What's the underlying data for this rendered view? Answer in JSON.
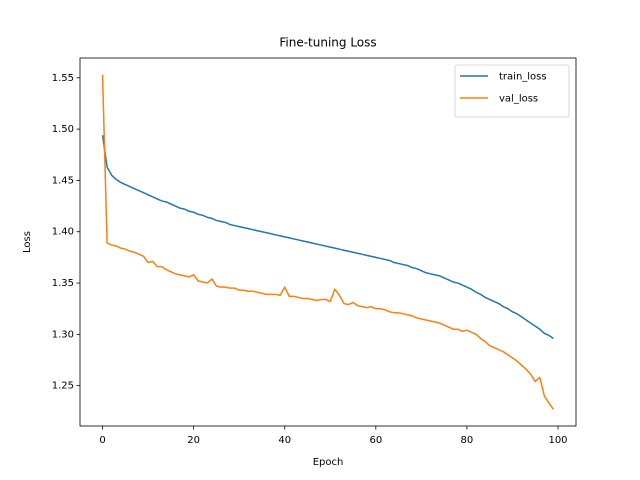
{
  "chart_data": {
    "type": "line",
    "title": "Fine-tuning Loss",
    "x_label": "Epoch",
    "y_label": "Loss",
    "x": [
      0,
      1,
      2,
      3,
      4,
      5,
      6,
      7,
      8,
      9,
      10,
      11,
      12,
      13,
      14,
      15,
      16,
      17,
      18,
      19,
      20,
      21,
      22,
      23,
      24,
      25,
      26,
      27,
      28,
      29,
      30,
      31,
      32,
      33,
      34,
      35,
      36,
      37,
      38,
      39,
      40,
      41,
      42,
      43,
      44,
      45,
      46,
      47,
      48,
      49,
      50,
      51,
      52,
      53,
      54,
      55,
      56,
      57,
      58,
      59,
      60,
      61,
      62,
      63,
      64,
      65,
      66,
      67,
      68,
      69,
      70,
      71,
      72,
      73,
      74,
      75,
      76,
      77,
      78,
      79,
      80,
      81,
      82,
      83,
      84,
      85,
      86,
      87,
      88,
      89,
      90,
      91,
      92,
      93,
      94,
      95,
      96,
      97,
      98,
      99
    ],
    "series": [
      {
        "name": "train_loss",
        "color": "#1f77b4",
        "values": [
          1.494,
          1.463,
          1.455,
          1.451,
          1.448,
          1.446,
          1.444,
          1.442,
          1.44,
          1.438,
          1.436,
          1.434,
          1.432,
          1.43,
          1.429,
          1.427,
          1.425,
          1.423,
          1.422,
          1.42,
          1.419,
          1.417,
          1.416,
          1.414,
          1.413,
          1.411,
          1.41,
          1.409,
          1.407,
          1.406,
          1.405,
          1.404,
          1.403,
          1.402,
          1.401,
          1.4,
          1.399,
          1.398,
          1.397,
          1.396,
          1.395,
          1.394,
          1.393,
          1.392,
          1.391,
          1.39,
          1.389,
          1.388,
          1.387,
          1.386,
          1.385,
          1.384,
          1.383,
          1.382,
          1.381,
          1.38,
          1.379,
          1.378,
          1.377,
          1.376,
          1.375,
          1.374,
          1.373,
          1.372,
          1.37,
          1.369,
          1.368,
          1.367,
          1.365,
          1.364,
          1.362,
          1.36,
          1.359,
          1.358,
          1.357,
          1.355,
          1.353,
          1.351,
          1.35,
          1.348,
          1.346,
          1.344,
          1.341,
          1.339,
          1.336,
          1.334,
          1.332,
          1.33,
          1.327,
          1.325,
          1.322,
          1.32,
          1.317,
          1.314,
          1.311,
          1.308,
          1.305,
          1.301,
          1.299,
          1.296
        ]
      },
      {
        "name": "val_loss",
        "color": "#ff7f0e",
        "values": [
          1.553,
          1.389,
          1.387,
          1.386,
          1.384,
          1.383,
          1.381,
          1.38,
          1.378,
          1.376,
          1.37,
          1.371,
          1.366,
          1.366,
          1.363,
          1.361,
          1.359,
          1.358,
          1.357,
          1.356,
          1.358,
          1.352,
          1.351,
          1.35,
          1.354,
          1.347,
          1.346,
          1.346,
          1.345,
          1.345,
          1.343,
          1.343,
          1.342,
          1.342,
          1.341,
          1.34,
          1.339,
          1.339,
          1.339,
          1.338,
          1.346,
          1.337,
          1.337,
          1.336,
          1.335,
          1.335,
          1.334,
          1.333,
          1.334,
          1.334,
          1.332,
          1.344,
          1.338,
          1.33,
          1.329,
          1.331,
          1.328,
          1.327,
          1.326,
          1.327,
          1.325,
          1.325,
          1.324,
          1.322,
          1.321,
          1.321,
          1.32,
          1.319,
          1.318,
          1.316,
          1.315,
          1.314,
          1.313,
          1.312,
          1.311,
          1.309,
          1.307,
          1.305,
          1.305,
          1.303,
          1.304,
          1.302,
          1.3,
          1.296,
          1.293,
          1.289,
          1.287,
          1.285,
          1.283,
          1.28,
          1.277,
          1.274,
          1.27,
          1.266,
          1.261,
          1.254,
          1.258,
          1.24,
          1.233,
          1.227
        ]
      }
    ],
    "xlim": [
      -4.95,
      103.95
    ],
    "ylim": [
      1.2107,
      1.5693
    ],
    "xticks": [
      0,
      20,
      40,
      60,
      80,
      100
    ],
    "yticks": [
      1.25,
      {
        "value": 1.3,
        "label": "1.30"
      },
      1.35,
      {
        "value": 1.4,
        "label": "1.40"
      },
      1.45,
      {
        "value": 1.5,
        "label": "1.50"
      },
      1.55
    ],
    "legend": "upper right",
    "grid": false
  }
}
